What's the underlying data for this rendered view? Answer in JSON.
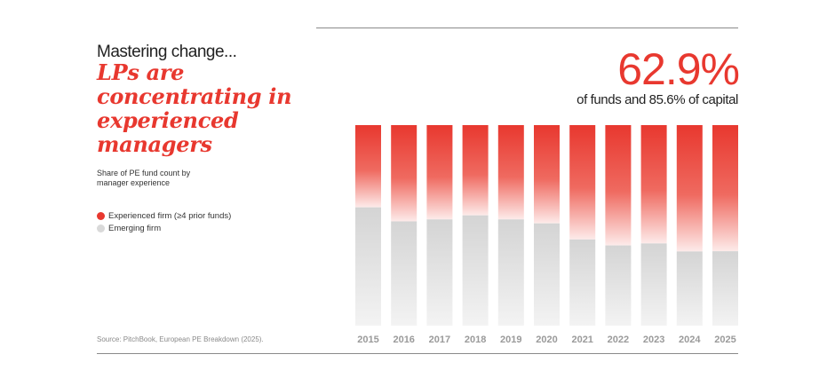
{
  "header": {
    "kicker": "Mastering change...",
    "headline": "LPs are concentrating in experienced managers",
    "subtitle": "Share of PE fund count by manager experience"
  },
  "stat": {
    "value": "62.9%",
    "caption": "of funds and 85.6% of capital"
  },
  "legend": {
    "items": [
      {
        "label": "Experienced firm (≥4 prior funds)",
        "color": "#e8382f"
      },
      {
        "label": "Emerging firm",
        "color": "#d9d9d9"
      }
    ]
  },
  "source": "Source: PitchBook, European PE Breakdown (2025).",
  "chart_data": {
    "type": "bar",
    "stacked": true,
    "categories": [
      "2015",
      "2016",
      "2017",
      "2018",
      "2019",
      "2020",
      "2021",
      "2022",
      "2023",
      "2024",
      "2025"
    ],
    "series": [
      {
        "name": "Emerging firm",
        "color": "#d9d9d9",
        "values": [
          59,
          52,
          53,
          55,
          53,
          51,
          43,
          40,
          41,
          37,
          37.1
        ]
      },
      {
        "name": "Experienced firm (≥4 prior funds)",
        "color": "#e8382f",
        "values": [
          41,
          48,
          47,
          45,
          47,
          49,
          57,
          60,
          59,
          63,
          62.9
        ]
      }
    ],
    "ylim": [
      0,
      100
    ],
    "grid": false,
    "legend_position": "left"
  }
}
